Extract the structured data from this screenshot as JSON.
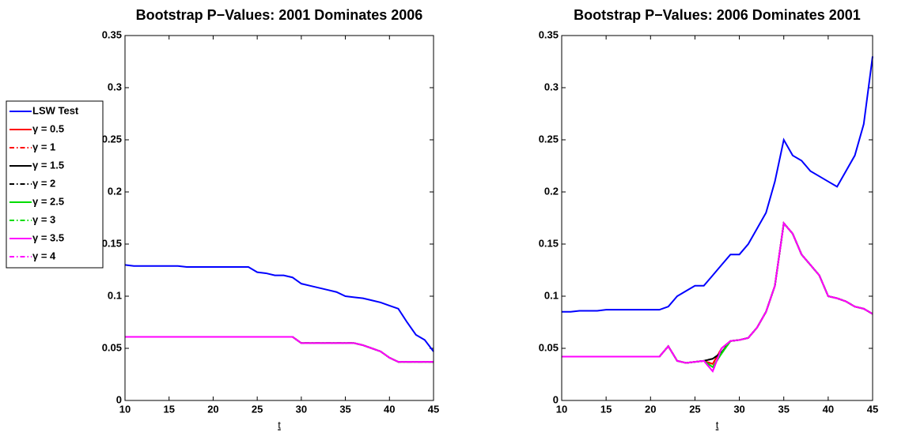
{
  "chart_data": [
    {
      "type": "line",
      "title": "Bootstrap P−Values: 2001 Dominates 2006",
      "xlabel": "t",
      "x": [
        10,
        11,
        12,
        13,
        14,
        15,
        16,
        17,
        18,
        19,
        20,
        21,
        22,
        23,
        24,
        25,
        26,
        27,
        28,
        29,
        30,
        31,
        32,
        33,
        34,
        35,
        36,
        37,
        38,
        39,
        40,
        41,
        42,
        43,
        44,
        45
      ],
      "xlim": [
        10,
        45
      ],
      "xticks": [
        10,
        15,
        20,
        25,
        30,
        35,
        40,
        45
      ],
      "ylim": [
        0,
        0.35
      ],
      "yticks": [
        0,
        0.05,
        0.1,
        0.15,
        0.2,
        0.25,
        0.3,
        0.35
      ],
      "grid": false,
      "legend": "outside left",
      "series": [
        {
          "name": "LSW Test",
          "color": "#0000ff",
          "linestyle": "solid",
          "values": [
            0.13,
            0.129,
            0.129,
            0.129,
            0.129,
            0.129,
            0.129,
            0.128,
            0.128,
            0.128,
            0.128,
            0.128,
            0.128,
            0.128,
            0.128,
            0.123,
            0.122,
            0.12,
            0.12,
            0.118,
            0.112,
            0.11,
            0.108,
            0.106,
            0.104,
            0.1,
            0.099,
            0.098,
            0.096,
            0.094,
            0.091,
            0.088,
            0.075,
            0.063,
            0.058,
            0.047
          ]
        },
        {
          "name": "γ = 0.5",
          "color": "#ff0000",
          "linestyle": "solid",
          "values": [
            0.061,
            0.061,
            0.061,
            0.061,
            0.061,
            0.061,
            0.061,
            0.061,
            0.061,
            0.061,
            0.061,
            0.061,
            0.061,
            0.061,
            0.061,
            0.061,
            0.061,
            0.061,
            0.061,
            0.061,
            0.055,
            0.055,
            0.055,
            0.055,
            0.055,
            0.055,
            0.055,
            0.053,
            0.05,
            0.047,
            0.041,
            0.037,
            0.037,
            0.037,
            0.037,
            0.037
          ]
        },
        {
          "name": "γ = 1",
          "color": "#ff0000",
          "linestyle": "dashdot",
          "values": [
            0.061,
            0.061,
            0.061,
            0.061,
            0.061,
            0.061,
            0.061,
            0.061,
            0.061,
            0.061,
            0.061,
            0.061,
            0.061,
            0.061,
            0.061,
            0.061,
            0.061,
            0.061,
            0.061,
            0.061,
            0.055,
            0.055,
            0.055,
            0.055,
            0.055,
            0.055,
            0.055,
            0.053,
            0.05,
            0.047,
            0.041,
            0.037,
            0.037,
            0.037,
            0.037,
            0.037
          ]
        },
        {
          "name": "γ = 1.5",
          "color": "#000000",
          "linestyle": "solid",
          "values": [
            0.061,
            0.061,
            0.061,
            0.061,
            0.061,
            0.061,
            0.061,
            0.061,
            0.061,
            0.061,
            0.061,
            0.061,
            0.061,
            0.061,
            0.061,
            0.061,
            0.061,
            0.061,
            0.061,
            0.061,
            0.055,
            0.055,
            0.055,
            0.055,
            0.055,
            0.055,
            0.055,
            0.053,
            0.05,
            0.047,
            0.041,
            0.037,
            0.037,
            0.037,
            0.037,
            0.037
          ]
        },
        {
          "name": "γ = 2",
          "color": "#000000",
          "linestyle": "dashdot",
          "values": [
            0.061,
            0.061,
            0.061,
            0.061,
            0.061,
            0.061,
            0.061,
            0.061,
            0.061,
            0.061,
            0.061,
            0.061,
            0.061,
            0.061,
            0.061,
            0.061,
            0.061,
            0.061,
            0.061,
            0.061,
            0.055,
            0.055,
            0.055,
            0.055,
            0.055,
            0.055,
            0.055,
            0.053,
            0.05,
            0.047,
            0.041,
            0.037,
            0.037,
            0.037,
            0.037,
            0.037
          ]
        },
        {
          "name": "γ = 2.5",
          "color": "#00dd00",
          "linestyle": "solid",
          "values": [
            0.061,
            0.061,
            0.061,
            0.061,
            0.061,
            0.061,
            0.061,
            0.061,
            0.061,
            0.061,
            0.061,
            0.061,
            0.061,
            0.061,
            0.061,
            0.061,
            0.061,
            0.061,
            0.061,
            0.061,
            0.055,
            0.055,
            0.055,
            0.055,
            0.055,
            0.055,
            0.055,
            0.053,
            0.05,
            0.047,
            0.041,
            0.037,
            0.037,
            0.037,
            0.037,
            0.037
          ]
        },
        {
          "name": "γ = 3",
          "color": "#00dd00",
          "linestyle": "dashdot",
          "values": [
            0.061,
            0.061,
            0.061,
            0.061,
            0.061,
            0.061,
            0.061,
            0.061,
            0.061,
            0.061,
            0.061,
            0.061,
            0.061,
            0.061,
            0.061,
            0.061,
            0.061,
            0.061,
            0.061,
            0.061,
            0.055,
            0.055,
            0.055,
            0.055,
            0.055,
            0.055,
            0.055,
            0.053,
            0.05,
            0.047,
            0.041,
            0.037,
            0.037,
            0.037,
            0.037,
            0.037
          ]
        },
        {
          "name": "γ = 3.5",
          "color": "#ff00ff",
          "linestyle": "solid",
          "values": [
            0.061,
            0.061,
            0.061,
            0.061,
            0.061,
            0.061,
            0.061,
            0.061,
            0.061,
            0.061,
            0.061,
            0.061,
            0.061,
            0.061,
            0.061,
            0.061,
            0.061,
            0.061,
            0.061,
            0.061,
            0.055,
            0.055,
            0.055,
            0.055,
            0.055,
            0.055,
            0.055,
            0.053,
            0.05,
            0.047,
            0.041,
            0.037,
            0.037,
            0.037,
            0.037,
            0.037
          ]
        },
        {
          "name": "γ = 4",
          "color": "#ff00ff",
          "linestyle": "dashdot",
          "values": [
            0.061,
            0.061,
            0.061,
            0.061,
            0.061,
            0.061,
            0.061,
            0.061,
            0.061,
            0.061,
            0.061,
            0.061,
            0.061,
            0.061,
            0.061,
            0.061,
            0.061,
            0.061,
            0.061,
            0.061,
            0.055,
            0.055,
            0.055,
            0.055,
            0.055,
            0.055,
            0.055,
            0.053,
            0.05,
            0.047,
            0.041,
            0.037,
            0.037,
            0.037,
            0.037,
            0.037
          ]
        }
      ]
    },
    {
      "type": "line",
      "title": "Bootstrap P−Values: 2006 Dominates 2001",
      "xlabel": "t",
      "x": [
        10,
        11,
        12,
        13,
        14,
        15,
        16,
        17,
        18,
        19,
        20,
        21,
        22,
        23,
        24,
        25,
        26,
        27,
        28,
        29,
        30,
        31,
        32,
        33,
        34,
        35,
        36,
        37,
        38,
        39,
        40,
        41,
        42,
        43,
        44,
        45
      ],
      "xlim": [
        10,
        45
      ],
      "xticks": [
        10,
        15,
        20,
        25,
        30,
        35,
        40,
        45
      ],
      "ylim": [
        0,
        0.35
      ],
      "yticks": [
        0,
        0.05,
        0.1,
        0.15,
        0.2,
        0.25,
        0.3,
        0.35
      ],
      "grid": false,
      "series": [
        {
          "name": "LSW Test",
          "color": "#0000ff",
          "linestyle": "solid",
          "values": [
            0.085,
            0.085,
            0.086,
            0.086,
            0.086,
            0.087,
            0.087,
            0.087,
            0.087,
            0.087,
            0.087,
            0.087,
            0.09,
            0.1,
            0.105,
            0.11,
            0.11,
            0.12,
            0.13,
            0.14,
            0.14,
            0.15,
            0.165,
            0.18,
            0.21,
            0.25,
            0.235,
            0.23,
            0.22,
            0.215,
            0.21,
            0.205,
            0.22,
            0.235,
            0.265,
            0.33
          ]
        },
        {
          "name": "γ = 0.5",
          "color": "#ff0000",
          "linestyle": "solid",
          "values": [
            0.042,
            0.042,
            0.042,
            0.042,
            0.042,
            0.042,
            0.042,
            0.042,
            0.042,
            0.042,
            0.042,
            0.042,
            0.052,
            0.038,
            0.036,
            0.037,
            0.038,
            0.035,
            0.05,
            0.057,
            0.058,
            0.06,
            0.07,
            0.085,
            0.11,
            0.17,
            0.16,
            0.14,
            0.13,
            0.12,
            0.1,
            0.098,
            0.095,
            0.09,
            0.088,
            0.083
          ]
        },
        {
          "name": "γ = 1",
          "color": "#ff0000",
          "linestyle": "dashdot",
          "values": [
            0.042,
            0.042,
            0.042,
            0.042,
            0.042,
            0.042,
            0.042,
            0.042,
            0.042,
            0.042,
            0.042,
            0.042,
            0.052,
            0.038,
            0.036,
            0.037,
            0.038,
            0.035,
            0.05,
            0.057,
            0.058,
            0.06,
            0.07,
            0.085,
            0.11,
            0.17,
            0.16,
            0.14,
            0.13,
            0.12,
            0.1,
            0.098,
            0.095,
            0.09,
            0.088,
            0.083
          ]
        },
        {
          "name": "γ = 1.5",
          "color": "#000000",
          "linestyle": "solid",
          "values": [
            0.042,
            0.042,
            0.042,
            0.042,
            0.042,
            0.042,
            0.042,
            0.042,
            0.042,
            0.042,
            0.042,
            0.042,
            0.052,
            0.038,
            0.036,
            0.037,
            0.038,
            0.04,
            0.046,
            0.057,
            0.058,
            0.06,
            0.07,
            0.085,
            0.11,
            0.17,
            0.16,
            0.14,
            0.13,
            0.12,
            0.1,
            0.098,
            0.095,
            0.09,
            0.088,
            0.083
          ]
        },
        {
          "name": "γ = 2",
          "color": "#000000",
          "linestyle": "dashdot",
          "values": [
            0.042,
            0.042,
            0.042,
            0.042,
            0.042,
            0.042,
            0.042,
            0.042,
            0.042,
            0.042,
            0.042,
            0.042,
            0.052,
            0.038,
            0.036,
            0.037,
            0.038,
            0.04,
            0.046,
            0.057,
            0.058,
            0.06,
            0.07,
            0.085,
            0.11,
            0.17,
            0.16,
            0.14,
            0.13,
            0.12,
            0.1,
            0.098,
            0.095,
            0.09,
            0.088,
            0.083
          ]
        },
        {
          "name": "γ = 2.5",
          "color": "#00dd00",
          "linestyle": "solid",
          "values": [
            0.042,
            0.042,
            0.042,
            0.042,
            0.042,
            0.042,
            0.042,
            0.042,
            0.042,
            0.042,
            0.042,
            0.042,
            0.052,
            0.038,
            0.036,
            0.037,
            0.038,
            0.032,
            0.045,
            0.057,
            0.058,
            0.06,
            0.07,
            0.085,
            0.11,
            0.17,
            0.16,
            0.14,
            0.13,
            0.12,
            0.1,
            0.098,
            0.095,
            0.09,
            0.088,
            0.083
          ]
        },
        {
          "name": "γ = 3",
          "color": "#00dd00",
          "linestyle": "dashdot",
          "values": [
            0.042,
            0.042,
            0.042,
            0.042,
            0.042,
            0.042,
            0.042,
            0.042,
            0.042,
            0.042,
            0.042,
            0.042,
            0.052,
            0.038,
            0.036,
            0.037,
            0.038,
            0.032,
            0.045,
            0.057,
            0.058,
            0.06,
            0.07,
            0.085,
            0.11,
            0.17,
            0.16,
            0.14,
            0.13,
            0.12,
            0.1,
            0.098,
            0.095,
            0.09,
            0.088,
            0.083
          ]
        },
        {
          "name": "γ = 3.5",
          "color": "#ff00ff",
          "linestyle": "solid",
          "values": [
            0.042,
            0.042,
            0.042,
            0.042,
            0.042,
            0.042,
            0.042,
            0.042,
            0.042,
            0.042,
            0.042,
            0.042,
            0.052,
            0.038,
            0.036,
            0.037,
            0.038,
            0.028,
            0.05,
            0.057,
            0.058,
            0.06,
            0.07,
            0.085,
            0.11,
            0.17,
            0.16,
            0.14,
            0.13,
            0.12,
            0.1,
            0.098,
            0.095,
            0.09,
            0.088,
            0.083
          ]
        },
        {
          "name": "γ = 4",
          "color": "#ff00ff",
          "linestyle": "dashdot",
          "values": [
            0.042,
            0.042,
            0.042,
            0.042,
            0.042,
            0.042,
            0.042,
            0.042,
            0.042,
            0.042,
            0.042,
            0.042,
            0.052,
            0.038,
            0.036,
            0.037,
            0.038,
            0.028,
            0.05,
            0.057,
            0.058,
            0.06,
            0.07,
            0.085,
            0.11,
            0.17,
            0.16,
            0.14,
            0.13,
            0.12,
            0.1,
            0.098,
            0.095,
            0.09,
            0.088,
            0.083
          ]
        }
      ]
    }
  ]
}
